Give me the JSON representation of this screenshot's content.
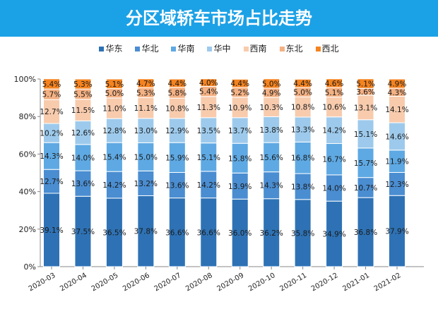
{
  "header": {
    "title": "分区域轿车市场占比走势",
    "color": "#1BA1E6"
  },
  "chart_data": {
    "type": "bar",
    "stacked": true,
    "title": "分区域轿车市场占比走势",
    "xlabel": "",
    "ylabel": "",
    "ylim": [
      0,
      100
    ],
    "yticks": [
      "0%",
      "20%",
      "40%",
      "60%",
      "80%",
      "100%"
    ],
    "legend_position": "top",
    "grid": false,
    "categories": [
      "2020-03",
      "2020-04",
      "2020-05",
      "2020-06",
      "2020-07",
      "2020-08",
      "2020-09",
      "2020-10",
      "2020-11",
      "2020-12",
      "2021-01",
      "2021-02"
    ],
    "series": [
      {
        "name": "华东",
        "color": "#2E72B5",
        "values": [
          39.1,
          37.5,
          36.5,
          37.8,
          36.6,
          36.6,
          36.0,
          36.2,
          35.8,
          34.9,
          36.8,
          37.9
        ]
      },
      {
        "name": "华北",
        "color": "#4A8DD1",
        "values": [
          12.7,
          13.6,
          14.2,
          13.2,
          13.6,
          14.2,
          13.9,
          14.3,
          13.8,
          14.0,
          10.7,
          12.3
        ]
      },
      {
        "name": "华南",
        "color": "#5EA9E3",
        "values": [
          14.3,
          14.0,
          15.4,
          15.0,
          15.9,
          15.1,
          15.8,
          15.6,
          16.8,
          16.7,
          15.7,
          11.9
        ]
      },
      {
        "name": "华中",
        "color": "#9DCAEC",
        "values": [
          10.2,
          12.6,
          12.8,
          13.0,
          12.9,
          13.5,
          13.7,
          13.8,
          13.3,
          14.2,
          15.1,
          14.6
        ]
      },
      {
        "name": "西南",
        "color": "#F8CBAD",
        "values": [
          12.7,
          11.5,
          11.0,
          11.1,
          10.8,
          11.3,
          10.9,
          10.3,
          10.8,
          10.6,
          13.1,
          14.1
        ]
      },
      {
        "name": "东北",
        "color": "#F4B183",
        "values": [
          5.7,
          5.5,
          5.0,
          5.3,
          5.8,
          5.4,
          5.2,
          4.9,
          5.0,
          5.1,
          3.6,
          4.3
        ]
      },
      {
        "name": "西北",
        "color": "#F5831F",
        "values": [
          5.4,
          5.3,
          5.1,
          4.7,
          4.4,
          4.0,
          4.4,
          5.0,
          4.4,
          4.6,
          5.1,
          4.9
        ]
      }
    ]
  }
}
